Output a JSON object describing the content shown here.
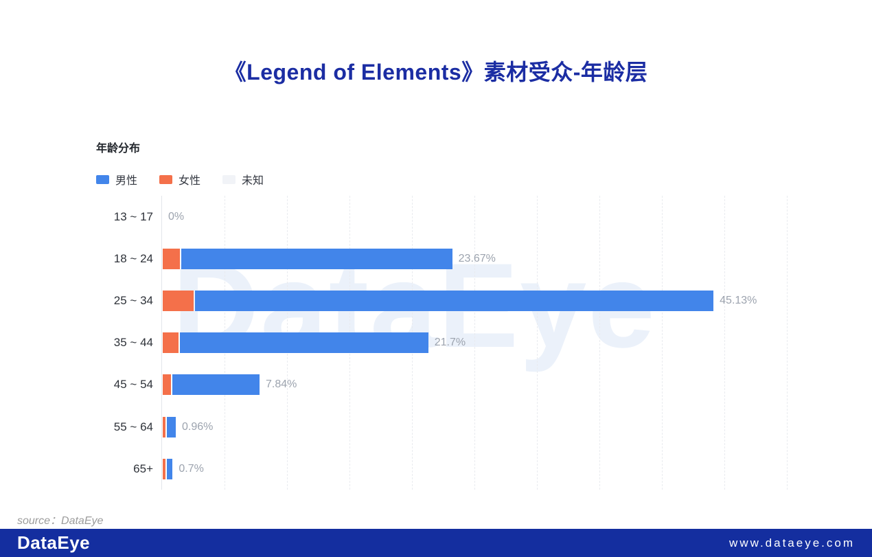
{
  "title": "《Legend of Elements》素材受众-年龄层",
  "chart_data": {
    "type": "bar",
    "orientation": "horizontal",
    "subtitle": "年龄分布",
    "categories": [
      "13 ~ 17",
      "18 ~ 24",
      "25 ~ 34",
      "35 ~ 44",
      "45 ~ 54",
      "55 ~ 64",
      "65+"
    ],
    "series": [
      {
        "name": "女性",
        "color": "#F4704A",
        "values": [
          0,
          1.41,
          2.54,
          1.3,
          0.65,
          0.23,
          0.23
        ]
      },
      {
        "name": "男性",
        "color": "#4285EA",
        "values": [
          0,
          22.26,
          42.59,
          20.4,
          7.19,
          0.73,
          0.47
        ]
      },
      {
        "name": "未知",
        "color": "#F1F3F7",
        "values": [
          0,
          0,
          0,
          0,
          0,
          0,
          0
        ]
      }
    ],
    "totals": [
      0,
      23.67,
      45.13,
      21.7,
      7.84,
      0.96,
      0.7
    ],
    "total_labels": [
      "0%",
      "23.67%",
      "45.13%",
      "21.7%",
      "7.84%",
      "0.96%",
      "0.7%"
    ],
    "legend_items": [
      {
        "label": "男性",
        "color": "#4285EA"
      },
      {
        "label": "女性",
        "color": "#F4704A"
      },
      {
        "label": "未知",
        "color": "#F1F3F7"
      }
    ],
    "legend_position": "top-left",
    "grid": true,
    "grid_interval_pct": 5,
    "xlim": [
      0,
      51.5
    ]
  },
  "watermark_text": "DataEye",
  "source_label": "source：DataEye",
  "footer": {
    "logo_text": "DataEye",
    "website": "www.dataeye.com",
    "bg_color": "#142E9F"
  },
  "colors": {
    "title": "#1B2DA3",
    "value_label": "#9CA3AE",
    "category_label": "#2e3239",
    "gridline": "#E9EBEF",
    "watermark": "#EBF1FA"
  }
}
